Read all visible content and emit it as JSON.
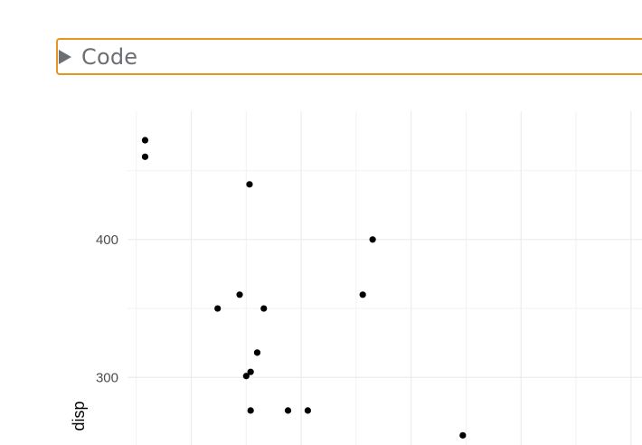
{
  "code_toggle": {
    "label": "Code",
    "icon": "triangle-right-icon",
    "border_color": "#e69520",
    "text_color": "#6b6f73"
  },
  "chart_data": {
    "type": "scatter",
    "title": "",
    "xlabel": "",
    "ylabel": "disp",
    "y_ticks": [
      300,
      400
    ],
    "ylim": [
      251,
      493
    ],
    "xlim": [
      0.92,
      5.6
    ],
    "x_gridlines": [
      1.5,
      2.5,
      3.5,
      4.5,
      5.5
    ],
    "x_minor_gridlines": [
      1,
      2,
      3,
      4,
      5
    ],
    "grid": true,
    "point_color": "#000000",
    "points": [
      {
        "x": 1.08,
        "y": 472
      },
      {
        "x": 1.08,
        "y": 460
      },
      {
        "x": 1.74,
        "y": 350
      },
      {
        "x": 1.94,
        "y": 360
      },
      {
        "x": 2.03,
        "y": 440
      },
      {
        "x": 2.0,
        "y": 301
      },
      {
        "x": 2.04,
        "y": 304
      },
      {
        "x": 2.04,
        "y": 276
      },
      {
        "x": 2.1,
        "y": 318
      },
      {
        "x": 2.16,
        "y": 350
      },
      {
        "x": 2.38,
        "y": 276
      },
      {
        "x": 2.56,
        "y": 276
      },
      {
        "x": 3.06,
        "y": 360
      },
      {
        "x": 3.15,
        "y": 400
      },
      {
        "x": 3.97,
        "y": 258
      }
    ]
  }
}
